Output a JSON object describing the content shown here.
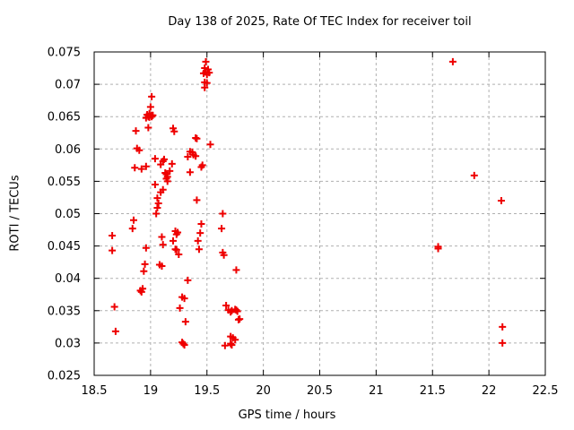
{
  "chart_data": {
    "type": "scatter",
    "title": "Day 138 of 2025, Rate Of TEC Index for receiver toil",
    "xlabel": "GPS time / hours",
    "ylabel": "ROTI / TECUs",
    "xlim": [
      18.5,
      22.5
    ],
    "ylim": [
      0.025,
      0.075
    ],
    "xticks": [
      18.5,
      19,
      19.5,
      20,
      20.5,
      21,
      21.5,
      22,
      22.5
    ],
    "xtick_labels": [
      "18.5",
      "19",
      "19.5",
      "20",
      "20.5",
      "21",
      "21.5",
      "22",
      "22.5"
    ],
    "yticks": [
      0.025,
      0.03,
      0.035,
      0.04,
      0.045,
      0.05,
      0.055,
      0.06,
      0.065,
      0.07,
      0.075
    ],
    "ytick_labels": [
      "0.025",
      "0.03",
      "0.035",
      "0.04",
      "0.045",
      "0.05",
      "0.055",
      "0.06",
      "0.065",
      "0.07",
      "0.075"
    ],
    "grid": true,
    "legend_position": "none",
    "marker": "plus",
    "marker_color": "#ee0000",
    "grid_color": "#b0b0b0",
    "border_color": "#000000",
    "series": [
      {
        "name": "ROTI",
        "points": [
          [
            19.49,
            0.0735
          ],
          [
            19.48,
            0.0725
          ],
          [
            19.51,
            0.0723
          ],
          [
            19.49,
            0.0719
          ],
          [
            19.52,
            0.0718
          ],
          [
            19.47,
            0.0717
          ],
          [
            19.5,
            0.0715
          ],
          [
            19.48,
            0.0703
          ],
          [
            19.5,
            0.0702
          ],
          [
            19.48,
            0.0695
          ],
          [
            19.01,
            0.0681
          ],
          [
            19.0,
            0.0665
          ],
          [
            18.99,
            0.0655
          ],
          [
            18.97,
            0.0653
          ],
          [
            19.01,
            0.0652
          ],
          [
            19.02,
            0.0652
          ],
          [
            18.98,
            0.065
          ],
          [
            18.99,
            0.0649
          ],
          [
            19.01,
            0.065
          ],
          [
            18.96,
            0.0648
          ],
          [
            18.98,
            0.0633
          ],
          [
            18.87,
            0.0628
          ],
          [
            19.2,
            0.0632
          ],
          [
            19.21,
            0.0627
          ],
          [
            19.4,
            0.0617
          ],
          [
            19.41,
            0.0616
          ],
          [
            19.53,
            0.0607
          ],
          [
            18.88,
            0.0601
          ],
          [
            18.9,
            0.0598
          ],
          [
            19.35,
            0.0596
          ],
          [
            19.37,
            0.0595
          ],
          [
            19.38,
            0.0591
          ],
          [
            19.4,
            0.0589
          ],
          [
            19.33,
            0.0588
          ],
          [
            19.04,
            0.0585
          ],
          [
            19.12,
            0.0584
          ],
          [
            19.11,
            0.0581
          ],
          [
            19.19,
            0.0577
          ],
          [
            19.09,
            0.0576
          ],
          [
            19.46,
            0.0575
          ],
          [
            18.96,
            0.0573
          ],
          [
            19.45,
            0.0572
          ],
          [
            18.86,
            0.0571
          ],
          [
            18.92,
            0.0569
          ],
          [
            19.17,
            0.0566
          ],
          [
            19.35,
            0.0564
          ],
          [
            19.13,
            0.0563
          ],
          [
            19.14,
            0.0561
          ],
          [
            21.87,
            0.0559
          ],
          [
            19.15,
            0.0557
          ],
          [
            19.14,
            0.0554
          ],
          [
            19.15,
            0.055
          ],
          [
            19.04,
            0.0545
          ],
          [
            19.11,
            0.0537
          ],
          [
            19.09,
            0.0533
          ],
          [
            19.06,
            0.0524
          ],
          [
            19.41,
            0.0521
          ],
          [
            22.11,
            0.052
          ],
          [
            19.07,
            0.0516
          ],
          [
            19.06,
            0.0509
          ],
          [
            19.64,
            0.05
          ],
          [
            19.05,
            0.05
          ],
          [
            18.85,
            0.049
          ],
          [
            19.45,
            0.0484
          ],
          [
            18.84,
            0.0477
          ],
          [
            19.63,
            0.0477
          ],
          [
            19.22,
            0.0473
          ],
          [
            19.24,
            0.0471
          ],
          [
            19.44,
            0.047
          ],
          [
            19.23,
            0.0468
          ],
          [
            18.66,
            0.0466
          ],
          [
            19.1,
            0.0464
          ],
          [
            19.2,
            0.0458
          ],
          [
            19.42,
            0.0458
          ],
          [
            21.55,
            0.0449
          ],
          [
            18.96,
            0.0447
          ],
          [
            21.55,
            0.0446
          ],
          [
            19.22,
            0.0445
          ],
          [
            19.43,
            0.0445
          ],
          [
            19.23,
            0.0444
          ],
          [
            18.66,
            0.0443
          ],
          [
            19.64,
            0.044
          ],
          [
            19.25,
            0.0437
          ],
          [
            19.65,
            0.0436
          ],
          [
            19.11,
            0.0452
          ],
          [
            18.95,
            0.0422
          ],
          [
            19.08,
            0.0421
          ],
          [
            19.1,
            0.0419
          ],
          [
            19.76,
            0.0413
          ],
          [
            18.94,
            0.0411
          ],
          [
            19.33,
            0.0397
          ],
          [
            18.93,
            0.0384
          ],
          [
            18.91,
            0.0381
          ],
          [
            18.92,
            0.0379
          ],
          [
            19.28,
            0.0371
          ],
          [
            19.3,
            0.0369
          ],
          [
            19.67,
            0.0358
          ],
          [
            18.68,
            0.0356
          ],
          [
            19.26,
            0.0354
          ],
          [
            19.75,
            0.0352
          ],
          [
            19.69,
            0.0351
          ],
          [
            19.76,
            0.0351
          ],
          [
            19.72,
            0.035
          ],
          [
            19.77,
            0.0349
          ],
          [
            19.71,
            0.0348
          ],
          [
            19.79,
            0.0337
          ],
          [
            19.78,
            0.0336
          ],
          [
            19.31,
            0.0333
          ],
          [
            22.12,
            0.0325
          ],
          [
            18.69,
            0.0318
          ],
          [
            19.71,
            0.031
          ],
          [
            19.73,
            0.0308
          ],
          [
            19.75,
            0.0305
          ],
          [
            19.28,
            0.0301
          ],
          [
            22.12,
            0.03
          ],
          [
            19.29,
            0.0299
          ],
          [
            19.71,
            0.0299
          ],
          [
            19.3,
            0.0297
          ],
          [
            19.72,
            0.0297
          ],
          [
            19.66,
            0.0296
          ],
          [
            21.68,
            0.0735
          ]
        ]
      }
    ]
  }
}
